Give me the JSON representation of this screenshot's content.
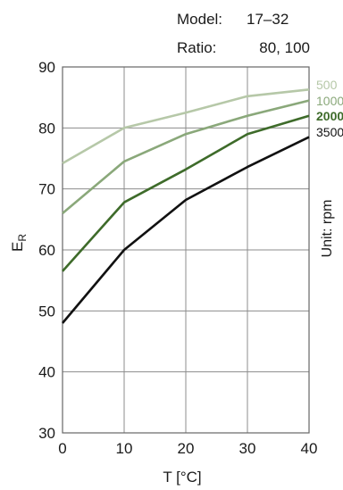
{
  "info": {
    "model_label": "Model:",
    "model_value": "17–32",
    "ratio_label": "Ratio:",
    "ratio_value": "80, 100"
  },
  "unit_label": "Unit: rpm",
  "chart_data": {
    "type": "line",
    "xlabel": "T [°C]",
    "ylabel_main": "E",
    "ylabel_sub": "R",
    "xlim": [
      0,
      40
    ],
    "ylim": [
      30,
      90
    ],
    "xticks": [
      0,
      10,
      20,
      30,
      40
    ],
    "yticks": [
      30,
      40,
      50,
      60,
      70,
      80,
      90
    ],
    "grid": true,
    "legend_position": "right",
    "series": [
      {
        "name": "500",
        "color": "#b6c8a8",
        "x": [
          0,
          10,
          20,
          30,
          40
        ],
        "y": [
          74.2,
          80.0,
          82.5,
          85.2,
          86.3
        ]
      },
      {
        "name": "1000",
        "color": "#8aa87a",
        "x": [
          0,
          10,
          20,
          30,
          40
        ],
        "y": [
          66.0,
          74.5,
          79.0,
          82.0,
          84.5
        ]
      },
      {
        "name": "2000",
        "color": "#3e6b2a",
        "x": [
          0,
          10,
          20,
          30,
          40
        ],
        "y": [
          56.5,
          67.8,
          73.2,
          79.0,
          82.0
        ]
      },
      {
        "name": "3500",
        "color": "#111111",
        "x": [
          0,
          10,
          20,
          30,
          40
        ],
        "y": [
          48.0,
          60.0,
          68.2,
          73.6,
          78.5
        ]
      }
    ]
  }
}
